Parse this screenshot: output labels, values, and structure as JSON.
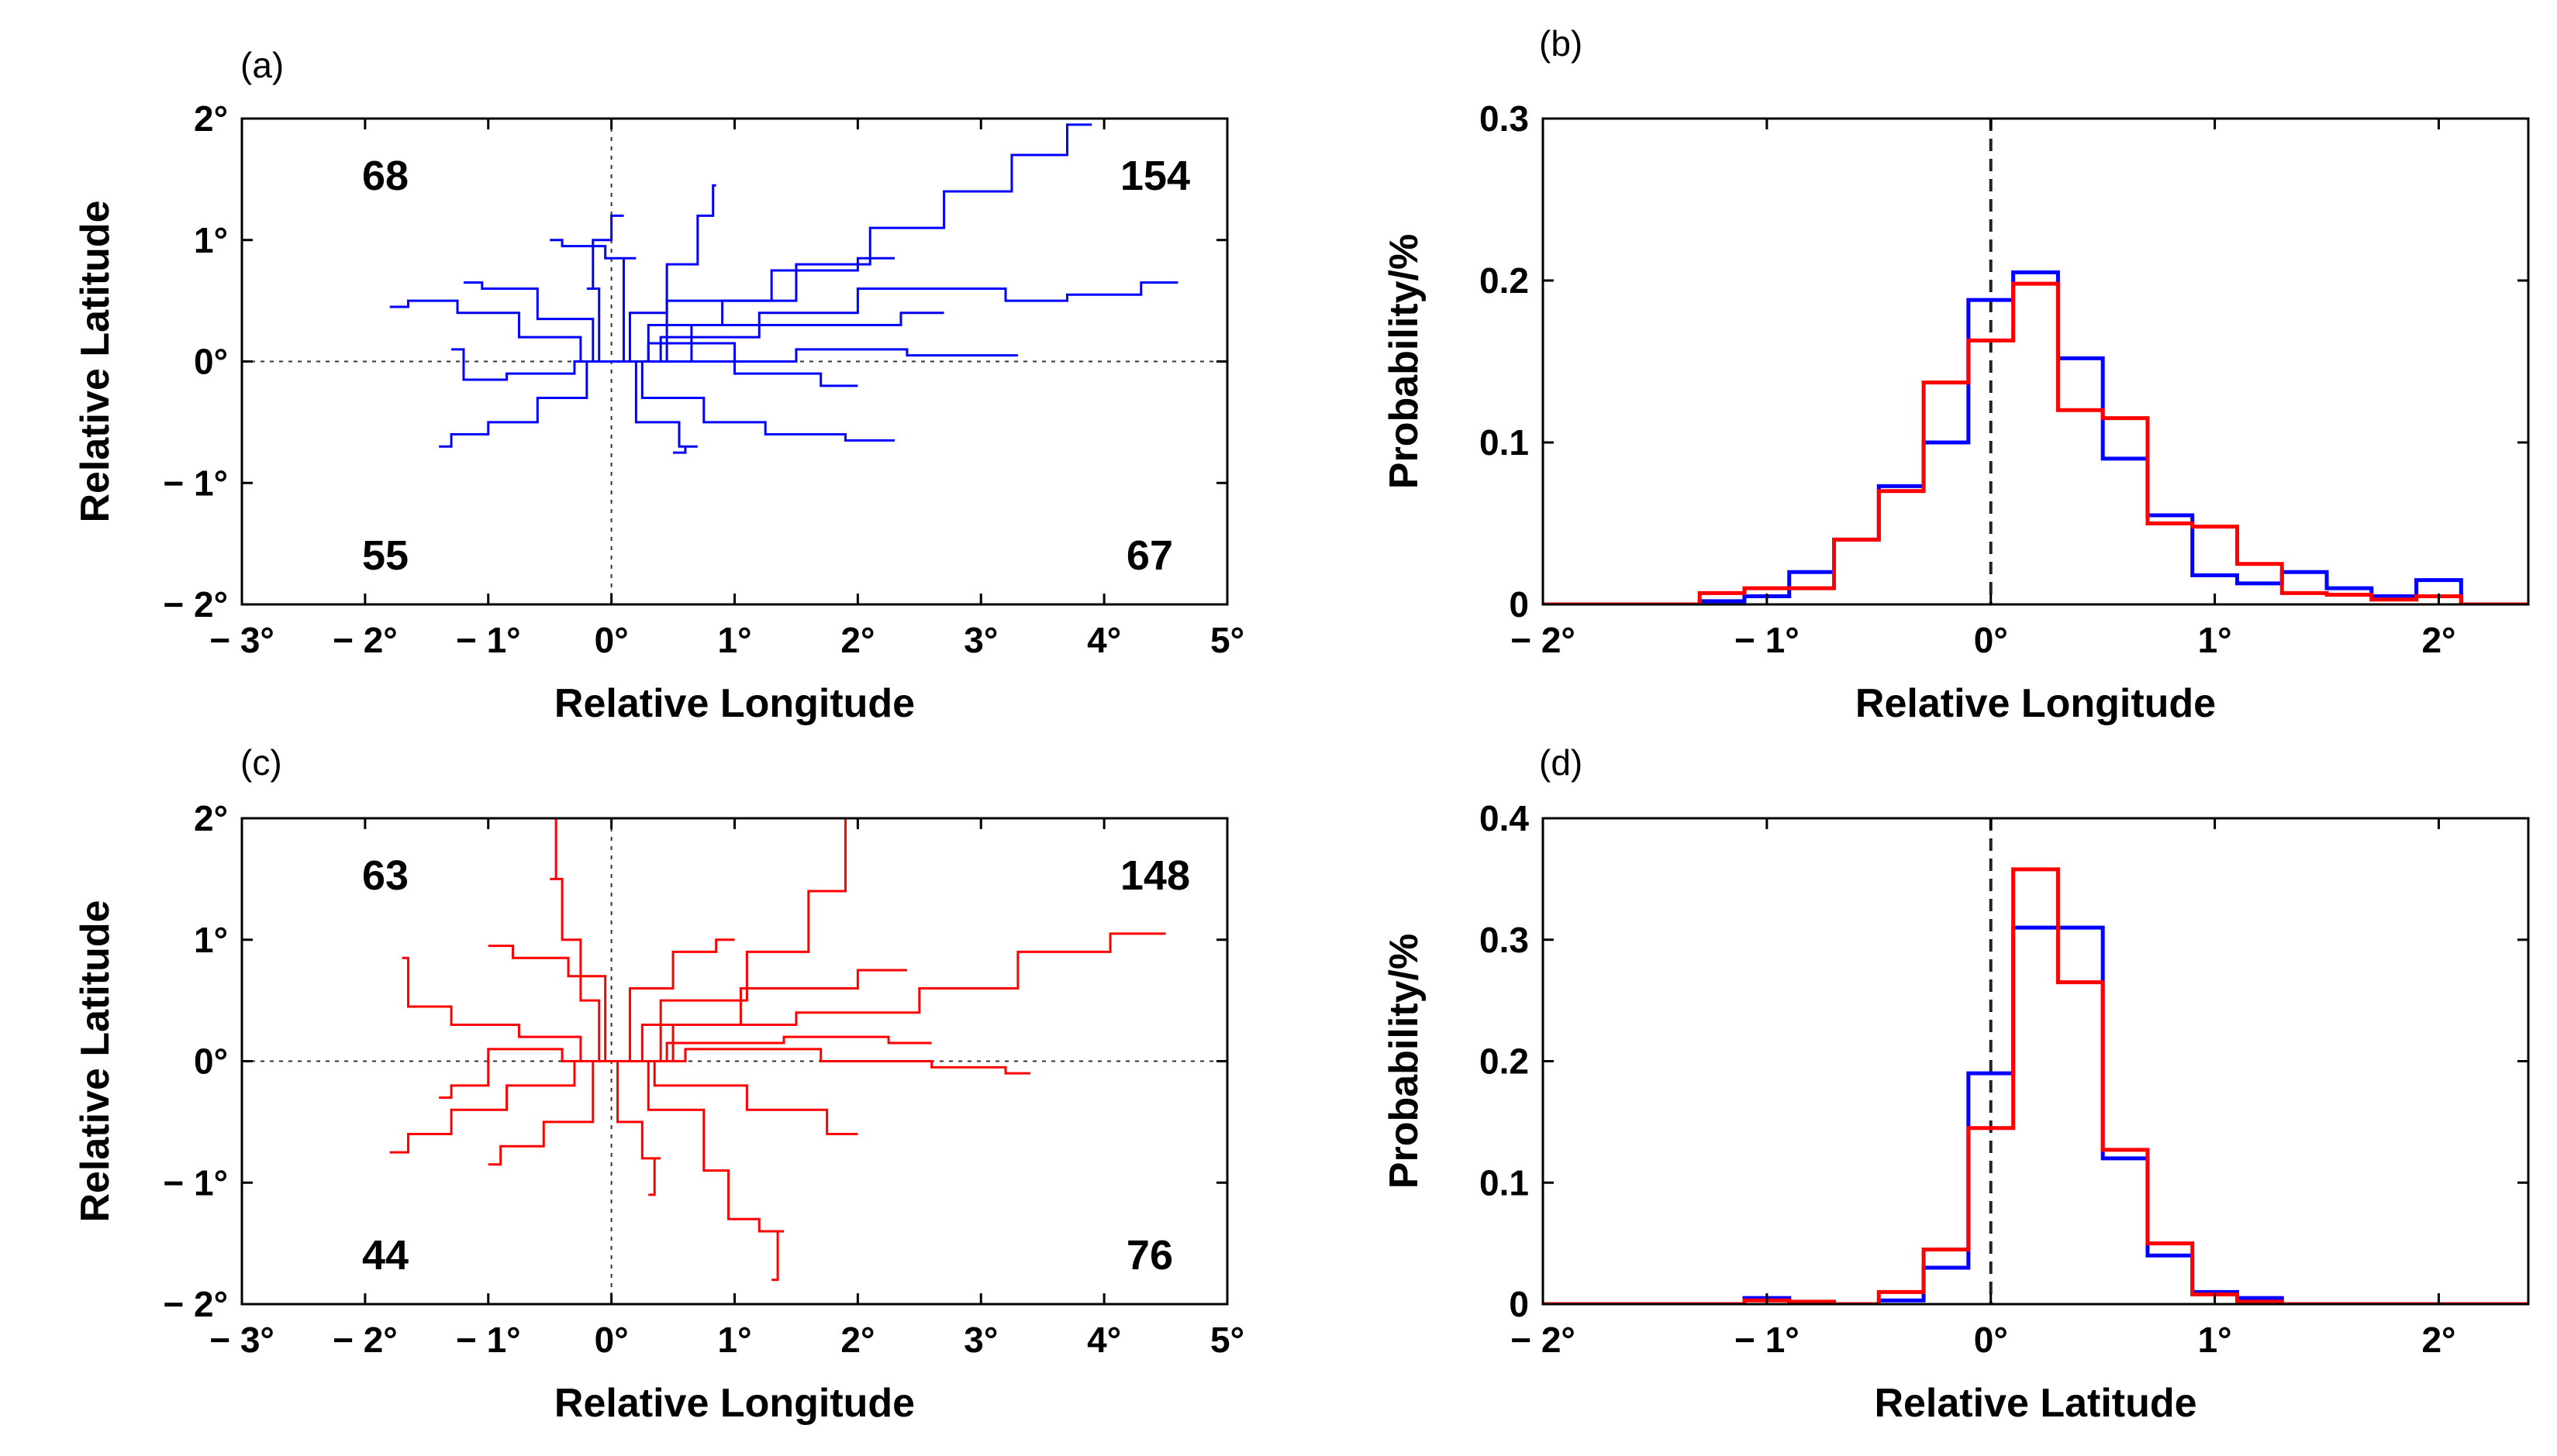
{
  "chart_data": [
    {
      "panel_label": "(a)",
      "type": "line",
      "description_series_color": "#0000ff",
      "xlabel": "Relative Longitude",
      "ylabel": "Relative Latitude",
      "xlim": [
        -3,
        5
      ],
      "ylim": [
        -2,
        2
      ],
      "xticks": [
        -3,
        -2,
        -1,
        0,
        1,
        2,
        3,
        4,
        5
      ],
      "xtick_labels": [
        "− 3°",
        "− 2°",
        "− 1°",
        "0°",
        "1°",
        "2°",
        "3°",
        "4°",
        "5°"
      ],
      "yticks": [
        2,
        1,
        0,
        -1,
        -2
      ],
      "ytick_labels": [
        "2°",
        "1°",
        "0°",
        "− 1°",
        "− 2°"
      ],
      "reference_lines": {
        "x": 0,
        "y": 0,
        "style": "dotted"
      },
      "quadrant_counts": {
        "top_left": "68",
        "top_right": "154",
        "bottom_left": "55",
        "bottom_right": "67"
      },
      "tracks": [
        [
          [
            0,
            0
          ],
          [
            0.6,
            0.3
          ],
          [
            1.2,
            0.5
          ],
          [
            1.8,
            0.8
          ],
          [
            2.4,
            1.1
          ],
          [
            3.0,
            1.4
          ],
          [
            3.5,
            1.7
          ],
          [
            3.9,
            1.95
          ]
        ],
        [
          [
            0,
            0
          ],
          [
            0.8,
            0.2
          ],
          [
            1.6,
            0.4
          ],
          [
            2.4,
            0.6
          ],
          [
            3.0,
            0.6
          ],
          [
            3.4,
            0.5
          ],
          [
            4.0,
            0.55
          ],
          [
            4.6,
            0.65
          ]
        ],
        [
          [
            0,
            0
          ],
          [
            -0.5,
            0.2
          ],
          [
            -1.0,
            0.4
          ],
          [
            -1.5,
            0.5
          ],
          [
            -1.8,
            0.45
          ]
        ],
        [
          [
            0,
            0
          ],
          [
            0.3,
            0.4
          ],
          [
            0.6,
            0.8
          ],
          [
            0.8,
            1.2
          ],
          [
            0.85,
            1.45
          ]
        ],
        [
          [
            0,
            0
          ],
          [
            -0.4,
            -0.3
          ],
          [
            -0.8,
            -0.5
          ],
          [
            -1.2,
            -0.6
          ],
          [
            -1.4,
            -0.7
          ]
        ],
        [
          [
            0,
            0
          ],
          [
            0.5,
            -0.3
          ],
          [
            1.0,
            -0.5
          ],
          [
            1.5,
            -0.6
          ],
          [
            2.3,
            -0.65
          ]
        ],
        [
          [
            0,
            0
          ],
          [
            1.0,
            0.0
          ],
          [
            2.0,
            0.1
          ],
          [
            2.8,
            0.05
          ],
          [
            3.3,
            0.05
          ]
        ],
        [
          [
            0,
            0
          ],
          [
            -0.2,
            0.6
          ],
          [
            -0.1,
            1.0
          ],
          [
            0.1,
            1.2
          ]
        ],
        [
          [
            0,
            0
          ],
          [
            0.9,
            0.5
          ],
          [
            1.7,
            0.75
          ],
          [
            2.3,
            0.85
          ]
        ],
        [
          [
            0,
            0
          ],
          [
            -0.6,
            -0.1
          ],
          [
            -1.1,
            -0.15
          ],
          [
            -1.3,
            0.1
          ]
        ],
        [
          [
            0,
            0
          ],
          [
            0.4,
            -0.5
          ],
          [
            0.7,
            -0.7
          ],
          [
            0.5,
            -0.75
          ]
        ],
        [
          [
            0,
            0
          ],
          [
            1.3,
            0.3
          ],
          [
            2.0,
            0.3
          ],
          [
            2.7,
            0.4
          ]
        ],
        [
          [
            0,
            0
          ],
          [
            -0.3,
            0.35
          ],
          [
            -0.9,
            0.6
          ],
          [
            -1.2,
            0.65
          ]
        ],
        [
          [
            0,
            0
          ],
          [
            0.6,
            0.15
          ],
          [
            1.4,
            -0.1
          ],
          [
            2.0,
            -0.2
          ]
        ],
        [
          [
            0,
            0
          ],
          [
            0.2,
            0.85
          ],
          [
            -0.3,
            0.95
          ],
          [
            -0.5,
            1.0
          ]
        ]
      ]
    },
    {
      "panel_label": "(b)",
      "type": "histogram",
      "xlabel": "Relative Longitude",
      "ylabel": "Probability/%",
      "xlim": [
        -2,
        2.4
      ],
      "ylim": [
        0,
        0.3
      ],
      "xticks": [
        -2,
        -1,
        0,
        1,
        2
      ],
      "xtick_labels": [
        "− 2°",
        "− 1°",
        "0°",
        "1°",
        "2°"
      ],
      "yticks": [
        0,
        0.1,
        0.2,
        0.3
      ],
      "ytick_labels": [
        "0",
        "0.1",
        "0.2",
        "0.3"
      ],
      "reference_lines": {
        "x": 0,
        "style": "dashed"
      },
      "bin_edges": [
        -2.0,
        -1.7,
        -1.5,
        -1.3,
        -1.1,
        -0.9,
        -0.7,
        -0.5,
        -0.3,
        -0.1,
        0.1,
        0.3,
        0.5,
        0.7,
        0.9,
        1.1,
        1.3,
        1.5,
        1.7,
        1.9,
        2.1,
        2.3,
        2.4
      ],
      "series": [
        {
          "name": "blue",
          "color": "#0000ff",
          "values": [
            0,
            0,
            0,
            0.002,
            0.005,
            0.02,
            0.04,
            0.073,
            0.1,
            0.188,
            0.205,
            0.152,
            0.09,
            0.055,
            0.018,
            0.013,
            0.02,
            0.01,
            0.005,
            0.015,
            0,
            0
          ]
        },
        {
          "name": "red",
          "color": "#ff0000",
          "values": [
            0,
            0,
            0,
            0.007,
            0.01,
            0.01,
            0.04,
            0.07,
            0.137,
            0.163,
            0.198,
            0.12,
            0.115,
            0.05,
            0.048,
            0.025,
            0.007,
            0.006,
            0.003,
            0.005,
            0,
            0
          ]
        }
      ]
    },
    {
      "panel_label": "(c)",
      "type": "line",
      "description_series_color": "#ff0000",
      "xlabel": "Relative Longitude",
      "ylabel": "Relative Latitude",
      "xlim": [
        -3,
        5
      ],
      "ylim": [
        -2,
        2
      ],
      "xticks": [
        -3,
        -2,
        -1,
        0,
        1,
        2,
        3,
        4,
        5
      ],
      "xtick_labels": [
        "− 3°",
        "− 2°",
        "− 1°",
        "0°",
        "1°",
        "2°",
        "3°",
        "4°",
        "5°"
      ],
      "yticks": [
        2,
        1,
        0,
        -1,
        -2
      ],
      "ytick_labels": [
        "2°",
        "1°",
        "0°",
        "− 1°",
        "− 2°"
      ],
      "reference_lines": {
        "x": 0,
        "y": 0,
        "style": "dotted"
      },
      "quadrant_counts": {
        "top_left": "63",
        "top_right": "148",
        "bottom_left": "44",
        "bottom_right": "76"
      },
      "tracks": [
        [
          [
            0,
            0
          ],
          [
            -0.2,
            0.5
          ],
          [
            -0.3,
            1.0
          ],
          [
            -0.5,
            1.5
          ],
          [
            -0.4,
            2.0
          ]
        ],
        [
          [
            0,
            0
          ],
          [
            0.8,
            0.5
          ],
          [
            1.4,
            0.9
          ],
          [
            1.8,
            1.4
          ],
          [
            2.0,
            2.0
          ]
        ],
        [
          [
            0,
            0
          ],
          [
            0.6,
            -0.4
          ],
          [
            0.9,
            -0.9
          ],
          [
            1.0,
            -1.3
          ],
          [
            1.4,
            -1.4
          ],
          [
            1.3,
            -1.8
          ]
        ],
        [
          [
            0,
            0
          ],
          [
            1.0,
            0.3
          ],
          [
            2.0,
            0.4
          ],
          [
            3.0,
            0.6
          ],
          [
            3.6,
            0.9
          ],
          [
            4.5,
            1.05
          ]
        ],
        [
          [
            0,
            0
          ],
          [
            -0.6,
            -0.2
          ],
          [
            -1.1,
            -0.4
          ],
          [
            -1.5,
            -0.6
          ],
          [
            -1.8,
            -0.75
          ]
        ],
        [
          [
            0,
            0
          ],
          [
            -0.5,
            0.2
          ],
          [
            -1.0,
            0.3
          ],
          [
            -1.6,
            0.45
          ],
          [
            -1.7,
            0.85
          ]
        ],
        [
          [
            0,
            0
          ],
          [
            1.2,
            0.1
          ],
          [
            2.2,
            0.0
          ],
          [
            3.0,
            -0.05
          ],
          [
            3.4,
            -0.1
          ]
        ],
        [
          [
            0,
            0
          ],
          [
            0.3,
            0.6
          ],
          [
            0.7,
            0.9
          ],
          [
            1.0,
            1.0
          ]
        ],
        [
          [
            0,
            0
          ],
          [
            -0.3,
            -0.5
          ],
          [
            -0.8,
            -0.7
          ],
          [
            -1.0,
            -0.85
          ]
        ],
        [
          [
            0,
            0
          ],
          [
            0.7,
            -0.2
          ],
          [
            1.5,
            -0.4
          ],
          [
            2.0,
            -0.6
          ]
        ],
        [
          [
            0,
            0
          ],
          [
            -0.8,
            0.1
          ],
          [
            -1.2,
            -0.2
          ],
          [
            -1.4,
            -0.3
          ]
        ],
        [
          [
            0,
            0
          ],
          [
            0.5,
            0.3
          ],
          [
            1.6,
            0.6
          ],
          [
            2.4,
            0.75
          ]
        ],
        [
          [
            0,
            0
          ],
          [
            0.1,
            -0.5
          ],
          [
            0.4,
            -0.8
          ],
          [
            0.3,
            -1.1
          ]
        ],
        [
          [
            0,
            0
          ],
          [
            -0.1,
            0.7
          ],
          [
            -0.6,
            0.85
          ],
          [
            -1.0,
            0.95
          ]
        ],
        [
          [
            0,
            0
          ],
          [
            0.9,
            0.15
          ],
          [
            1.9,
            0.2
          ],
          [
            2.6,
            0.15
          ]
        ]
      ]
    },
    {
      "panel_label": "(d)",
      "type": "histogram",
      "xlabel": "Relative Latitude",
      "ylabel": "Probability/%",
      "xlim": [
        -2,
        2.4
      ],
      "ylim": [
        0,
        0.4
      ],
      "xticks": [
        -2,
        -1,
        0,
        1,
        2
      ],
      "xtick_labels": [
        "− 2°",
        "− 1°",
        "0°",
        "1°",
        "2°"
      ],
      "yticks": [
        0,
        0.1,
        0.2,
        0.3,
        0.4
      ],
      "ytick_labels": [
        "0",
        "0.1",
        "0.2",
        "0.3",
        "0.4"
      ],
      "reference_lines": {
        "x": 0,
        "style": "dashed"
      },
      "bin_edges": [
        -2.0,
        -1.1,
        -0.9,
        -0.7,
        -0.5,
        -0.3,
        -0.1,
        0.1,
        0.3,
        0.5,
        0.7,
        0.9,
        1.1,
        1.3,
        2.4
      ],
      "series": [
        {
          "name": "blue",
          "color": "#0000ff",
          "values": [
            0,
            0.005,
            0,
            0,
            0.003,
            0.03,
            0.19,
            0.31,
            0.31,
            0.12,
            0.04,
            0.01,
            0.005,
            0
          ]
        },
        {
          "name": "red",
          "color": "#ff0000",
          "values": [
            0,
            0.003,
            0.002,
            0,
            0.01,
            0.045,
            0.145,
            0.358,
            0.265,
            0.127,
            0.05,
            0.008,
            0.002,
            0
          ]
        }
      ]
    }
  ]
}
